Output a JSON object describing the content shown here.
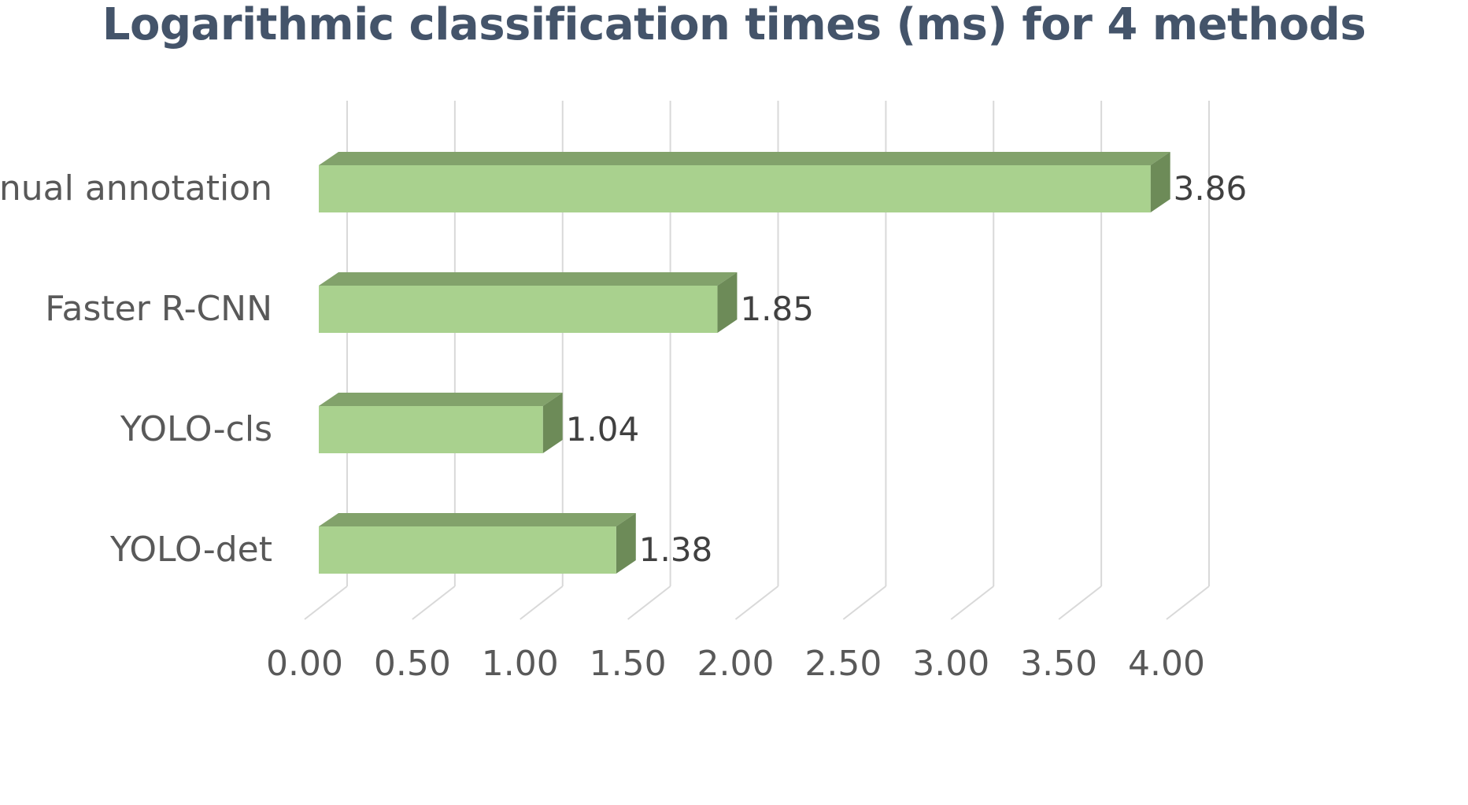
{
  "chart_data": {
    "type": "bar",
    "orientation": "horizontal",
    "style": "3d",
    "title": "Logarithmic classification times (ms) for 4 methods",
    "categories": [
      "manual annotation",
      "Faster R-CNN",
      "YOLO-cls",
      "YOLO-det"
    ],
    "values": [
      3.86,
      1.85,
      1.04,
      1.38
    ],
    "data_labels": [
      "3.86",
      "1.85",
      "1.04",
      "1.38"
    ],
    "xlim": [
      0,
      4
    ],
    "x_ticks": [
      0,
      0.5,
      1,
      1.5,
      2,
      2.5,
      3,
      3.5,
      4
    ],
    "x_tick_labels": [
      "0.00",
      "0.50",
      "1.00",
      "1.50",
      "2.00",
      "2.50",
      "3.00",
      "3.50",
      "4.00"
    ],
    "grid": "vertical",
    "legend": "none",
    "colors": {
      "bar_front": "#a9d18e",
      "bar_top": "#82a26b",
      "bar_side": "#6d8b58",
      "grid": "#d9d9d9",
      "title": "#44546a"
    }
  }
}
